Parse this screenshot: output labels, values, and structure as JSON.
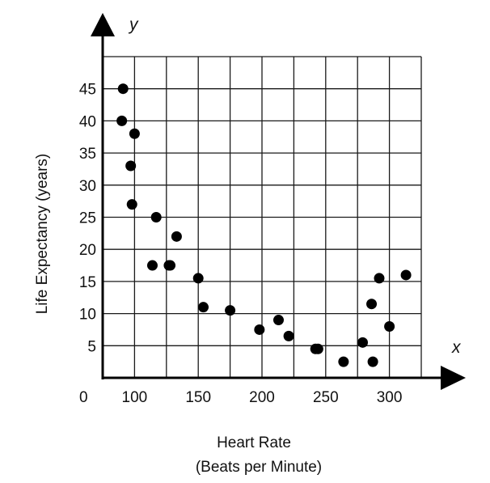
{
  "chart_data": {
    "type": "scatter",
    "xlabel": "Heart Rate",
    "xlabel_sub": "(Beats per Minute)",
    "ylabel": "Life Expectancy (years)",
    "x_axis_letter": "x",
    "y_axis_letter": "y",
    "origin_label": "0",
    "x_ticks": [
      "100",
      "150",
      "200",
      "250",
      "300"
    ],
    "y_ticks": [
      "5",
      "10",
      "15",
      "20",
      "25",
      "30",
      "35",
      "40",
      "45"
    ],
    "xlim": [
      75,
      325
    ],
    "ylim": [
      0,
      50
    ],
    "grid": true,
    "points": [
      {
        "x": 91,
        "y": 45
      },
      {
        "x": 90,
        "y": 40
      },
      {
        "x": 100,
        "y": 38
      },
      {
        "x": 97,
        "y": 33
      },
      {
        "x": 98,
        "y": 27
      },
      {
        "x": 117,
        "y": 25
      },
      {
        "x": 133,
        "y": 22
      },
      {
        "x": 114,
        "y": 17.5
      },
      {
        "x": 127,
        "y": 17.5
      },
      {
        "x": 128,
        "y": 17.5
      },
      {
        "x": 150,
        "y": 15.5
      },
      {
        "x": 154,
        "y": 11
      },
      {
        "x": 175,
        "y": 10.5
      },
      {
        "x": 198,
        "y": 7.5
      },
      {
        "x": 213,
        "y": 9
      },
      {
        "x": 221,
        "y": 6.5
      },
      {
        "x": 242,
        "y": 4.5
      },
      {
        "x": 244,
        "y": 4.5
      },
      {
        "x": 264,
        "y": 2.5
      },
      {
        "x": 279,
        "y": 5.5
      },
      {
        "x": 286,
        "y": 11.5
      },
      {
        "x": 287,
        "y": 2.5
      },
      {
        "x": 292,
        "y": 15.5
      },
      {
        "x": 300,
        "y": 8
      },
      {
        "x": 313,
        "y": 16
      }
    ]
  }
}
